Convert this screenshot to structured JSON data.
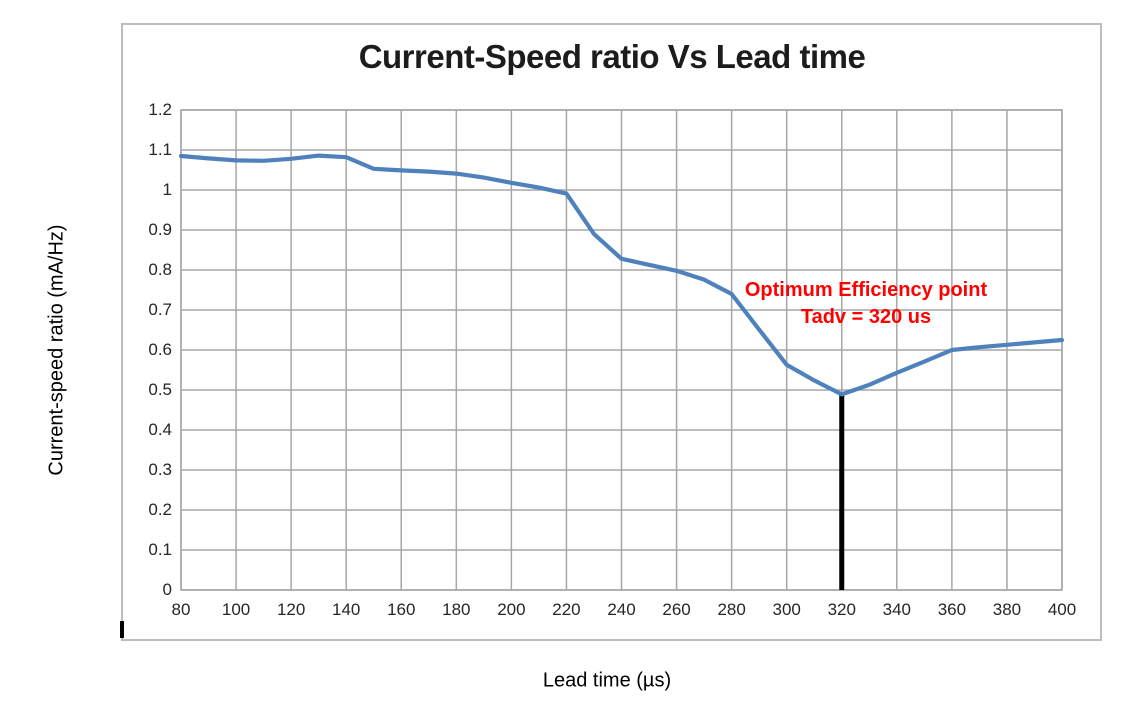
{
  "title": "Current-Speed ratio Vs Lead time",
  "x_axis": {
    "label": "Lead time (µs)",
    "min": 80,
    "max": 400,
    "tick_step": 20,
    "ticks": [
      80,
      100,
      120,
      140,
      160,
      180,
      200,
      220,
      240,
      260,
      280,
      300,
      320,
      340,
      360,
      380,
      400
    ]
  },
  "y_axis": {
    "label": "Current-speed ratio (mA/Hz)",
    "min": 0,
    "max": 1.2,
    "tick_step": 0.1,
    "tick_labels": [
      "1.2",
      "1.1",
      "1",
      "0.9",
      "0.8",
      "0.7",
      "0.6",
      "0.5",
      "0.4",
      "0.3",
      "0.2",
      "0.1",
      "0"
    ]
  },
  "annotation": {
    "line1": "Optimum Efficiency point",
    "line2": "Tadv = 320 us",
    "color": "#ff0000",
    "anchor_x": 329,
    "anchor_y": 0.78
  },
  "marker_line": {
    "x": 320,
    "y_from": 0,
    "y_to": 0.489,
    "color": "#000000",
    "width": 5
  },
  "colors": {
    "series": "#4f81bd",
    "grid": "#a6a6a6",
    "frame": "#bdbdbd",
    "title": "#1c1c1c",
    "tick_text": "#262626"
  },
  "chart_data": {
    "type": "line",
    "title": "Current-Speed ratio Vs Lead time",
    "xlabel": "Lead time (µs)",
    "ylabel": "Current-speed ratio (mA/Hz)",
    "xlim": [
      80,
      400
    ],
    "ylim": [
      0,
      1.2
    ],
    "grid": true,
    "legend": false,
    "x": [
      80,
      90,
      100,
      110,
      120,
      130,
      140,
      150,
      160,
      170,
      180,
      190,
      200,
      210,
      220,
      230,
      240,
      250,
      260,
      270,
      280,
      290,
      300,
      310,
      320,
      330,
      340,
      350,
      360,
      370,
      380,
      390,
      400
    ],
    "values": [
      1.085,
      1.079,
      1.074,
      1.073,
      1.078,
      1.086,
      1.082,
      1.053,
      1.049,
      1.046,
      1.041,
      1.031,
      1.018,
      1.006,
      0.991,
      0.89,
      0.828,
      0.813,
      0.798,
      0.776,
      0.74,
      0.651,
      0.563,
      0.524,
      0.489,
      0.513,
      0.543,
      0.571,
      0.6,
      0.607,
      0.613,
      0.619,
      0.625
    ],
    "series_color": "#4f81bd",
    "min_point": {
      "x": 320,
      "value": 0.489
    }
  }
}
